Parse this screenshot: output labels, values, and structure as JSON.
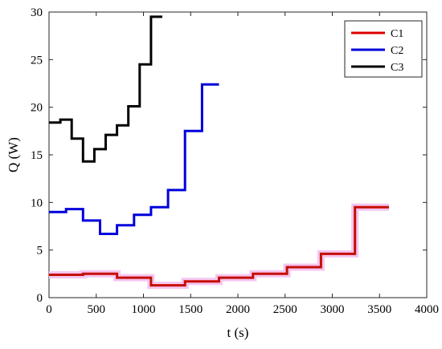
{
  "chart_data": {
    "type": "line",
    "step": true,
    "xlabel": "t (s)",
    "ylabel": "Q (W)",
    "xlim": [
      0,
      4000
    ],
    "ylim": [
      0,
      30
    ],
    "xticks": [
      0,
      500,
      1000,
      1500,
      2000,
      2500,
      3000,
      3500,
      4000
    ],
    "yticks": [
      0,
      5,
      10,
      15,
      20,
      25,
      30
    ],
    "grid": false,
    "legend_position": "top-right",
    "series": [
      {
        "name": "C1",
        "color": "#dd0000",
        "points": [
          [
            0,
            2.4
          ],
          [
            360,
            2.4
          ],
          [
            360,
            2.5
          ],
          [
            720,
            2.5
          ],
          [
            720,
            2.1
          ],
          [
            1080,
            2.1
          ],
          [
            1080,
            1.3
          ],
          [
            1440,
            1.3
          ],
          [
            1440,
            1.7
          ],
          [
            1800,
            1.7
          ],
          [
            1800,
            2.1
          ],
          [
            2160,
            2.1
          ],
          [
            2160,
            2.5
          ],
          [
            2520,
            2.5
          ],
          [
            2520,
            3.2
          ],
          [
            2880,
            3.2
          ],
          [
            2880,
            4.6
          ],
          [
            3240,
            4.6
          ],
          [
            3240,
            9.5
          ],
          [
            3600,
            9.5
          ]
        ]
      },
      {
        "name": "C2",
        "color": "#0000dd",
        "points": [
          [
            0,
            9.0
          ],
          [
            180,
            9.0
          ],
          [
            180,
            9.3
          ],
          [
            360,
            9.3
          ],
          [
            360,
            8.1
          ],
          [
            540,
            8.1
          ],
          [
            540,
            6.7
          ],
          [
            720,
            6.7
          ],
          [
            720,
            7.6
          ],
          [
            900,
            7.6
          ],
          [
            900,
            8.7
          ],
          [
            1080,
            8.7
          ],
          [
            1080,
            9.5
          ],
          [
            1260,
            9.5
          ],
          [
            1260,
            11.3
          ],
          [
            1440,
            11.3
          ],
          [
            1440,
            17.5
          ],
          [
            1620,
            17.5
          ],
          [
            1620,
            22.4
          ],
          [
            1800,
            22.4
          ]
        ]
      },
      {
        "name": "C3",
        "color": "#000000",
        "points": [
          [
            0,
            18.4
          ],
          [
            120,
            18.4
          ],
          [
            120,
            18.7
          ],
          [
            240,
            18.7
          ],
          [
            240,
            16.7
          ],
          [
            360,
            16.7
          ],
          [
            360,
            14.3
          ],
          [
            480,
            14.3
          ],
          [
            480,
            15.6
          ],
          [
            600,
            15.6
          ],
          [
            600,
            17.1
          ],
          [
            720,
            17.1
          ],
          [
            720,
            18.1
          ],
          [
            840,
            18.1
          ],
          [
            840,
            20.1
          ],
          [
            960,
            20.1
          ],
          [
            960,
            24.5
          ],
          [
            1080,
            24.5
          ],
          [
            1080,
            29.5
          ],
          [
            1200,
            29.5
          ]
        ]
      }
    ]
  }
}
